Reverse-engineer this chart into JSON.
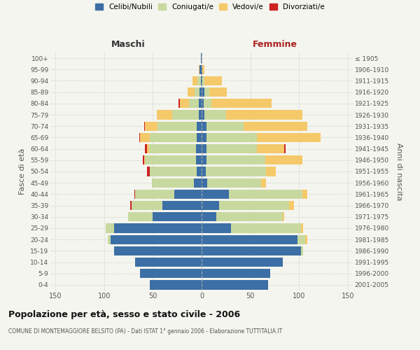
{
  "age_groups": [
    "100+",
    "95-99",
    "90-94",
    "85-89",
    "80-84",
    "75-79",
    "70-74",
    "65-69",
    "60-64",
    "55-59",
    "50-54",
    "45-49",
    "40-44",
    "35-39",
    "30-34",
    "25-29",
    "20-24",
    "15-19",
    "10-14",
    "5-9",
    "0-4"
  ],
  "birth_years": [
    "≤ 1905",
    "1906-1910",
    "1911-1915",
    "1916-1920",
    "1921-1925",
    "1926-1930",
    "1931-1935",
    "1936-1940",
    "1941-1945",
    "1946-1950",
    "1951-1955",
    "1956-1960",
    "1961-1965",
    "1966-1970",
    "1971-1975",
    "1976-1980",
    "1981-1985",
    "1986-1990",
    "1991-1995",
    "1996-2000",
    "2001-2005"
  ],
  "maschi": {
    "celibi": [
      1,
      2,
      1,
      2,
      3,
      3,
      5,
      5,
      6,
      6,
      5,
      8,
      28,
      40,
      50,
      90,
      93,
      90,
      68,
      63,
      53
    ],
    "coniugati": [
      0,
      0,
      3,
      5,
      10,
      27,
      40,
      48,
      48,
      52,
      48,
      43,
      40,
      32,
      25,
      8,
      3,
      0,
      0,
      0,
      0
    ],
    "vedovi": [
      0,
      1,
      5,
      7,
      9,
      16,
      13,
      10,
      2,
      1,
      0,
      0,
      0,
      0,
      0,
      0,
      0,
      0,
      0,
      0,
      0
    ],
    "divorziati": [
      0,
      0,
      0,
      0,
      2,
      0,
      1,
      1,
      2,
      1,
      3,
      0,
      1,
      1,
      0,
      0,
      0,
      0,
      0,
      0,
      0
    ]
  },
  "femmine": {
    "nubili": [
      0,
      1,
      1,
      3,
      2,
      3,
      5,
      5,
      5,
      5,
      4,
      6,
      28,
      18,
      15,
      30,
      98,
      102,
      83,
      70,
      68
    ],
    "coniugate": [
      0,
      0,
      2,
      5,
      8,
      22,
      38,
      52,
      52,
      60,
      62,
      55,
      75,
      72,
      68,
      72,
      8,
      2,
      0,
      0,
      0
    ],
    "vedove": [
      0,
      2,
      18,
      18,
      62,
      78,
      65,
      65,
      28,
      38,
      10,
      5,
      5,
      5,
      2,
      2,
      2,
      0,
      0,
      0,
      0
    ],
    "divorziate": [
      0,
      0,
      0,
      0,
      0,
      0,
      0,
      0,
      1,
      0,
      0,
      0,
      0,
      0,
      0,
      0,
      0,
      0,
      0,
      0,
      0
    ]
  },
  "colors": {
    "celibi": "#3c6fa5",
    "coniugati": "#c8d9a0",
    "vedovi": "#f5c96a",
    "divorziati": "#cc2222"
  },
  "bg_color": "#f5f5ef",
  "grid_color": "#cccccc",
  "xlim": 155,
  "title": "Popolazione per età, sesso e stato civile - 2006",
  "subtitle": "COMUNE DI MONTEMAGGIORE BELSITO (PA) - Dati ISTAT 1° gennaio 2006 - Elaborazione TUTTITALIA.IT",
  "ylabel_left": "Fasce di età",
  "ylabel_right": "Anni di nascita",
  "xlabel_left": "Maschi",
  "xlabel_right": "Femmine"
}
